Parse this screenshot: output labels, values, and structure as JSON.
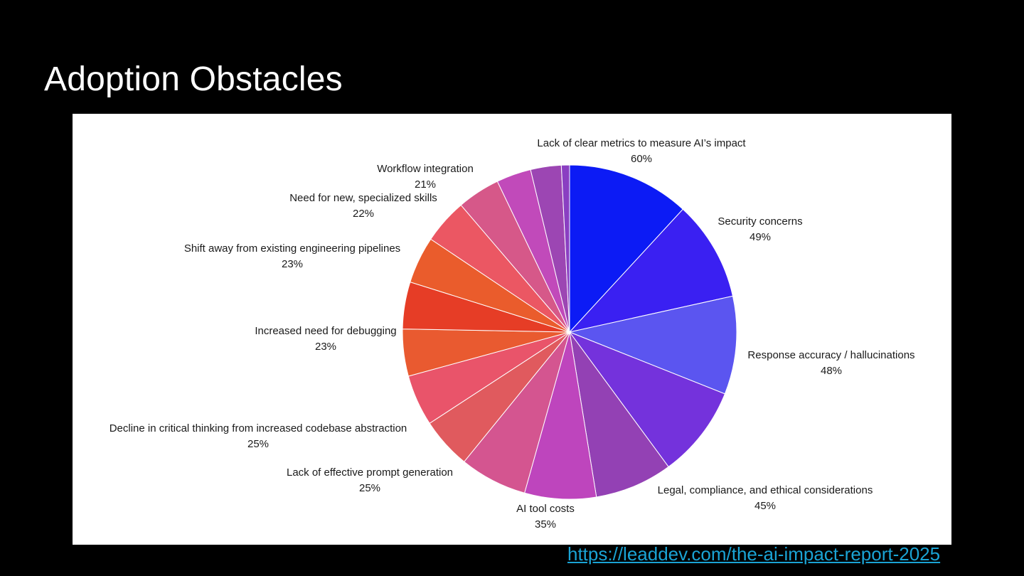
{
  "slide": {
    "title": "Adoption Obstacles",
    "source_link": "https://leaddev.com/the-ai-impact-report-2025"
  },
  "chart_data": {
    "type": "pie",
    "title": "",
    "slices": [
      {
        "label": "Lack of clear metrics to measure AI’s impact",
        "value": 60,
        "value_label": "60%",
        "color": "#0c1bf5"
      },
      {
        "label": "Security concerns",
        "value": 49,
        "value_label": "49%",
        "color": "#3a20f2"
      },
      {
        "label": "Response accuracy / hallucinations",
        "value": 48,
        "value_label": "48%",
        "color": "#5b55f0"
      },
      {
        "label": "Legal, compliance, and ethical considerations",
        "value": 45,
        "value_label": "45%",
        "color": "#7432dc"
      },
      {
        "label": "",
        "value": 38,
        "value_label": "",
        "color": "#9341b4"
      },
      {
        "label": "AI tool costs",
        "value": 35,
        "value_label": "35%",
        "color": "#be45bd"
      },
      {
        "label": "",
        "value": 33,
        "value_label": "",
        "color": "#d45590"
      },
      {
        "label": "Lack of effective prompt generation",
        "value": 25,
        "value_label": "25%",
        "color": "#e05a5e"
      },
      {
        "label": "Decline in critical thinking from increased codebase abstraction",
        "value": 25,
        "value_label": "25%",
        "color": "#e9546a"
      },
      {
        "label": "Increased need for debugging",
        "value": 23,
        "value_label": "23%",
        "color": "#e95a30"
      },
      {
        "label": "",
        "value": 23,
        "value_label": "",
        "color": "#e63d26"
      },
      {
        "label": "Shift away from existing engineering pipelines",
        "value": 23,
        "value_label": "23%",
        "color": "#ea5c2c"
      },
      {
        "label": "Need for new, specialized skills",
        "value": 22,
        "value_label": "22%",
        "color": "#eb5763"
      },
      {
        "label": "Workflow integration",
        "value": 21,
        "value_label": "21%",
        "color": "#d65889"
      },
      {
        "label": "",
        "value": 17,
        "value_label": "",
        "color": "#c14aba"
      },
      {
        "label": "",
        "value": 15,
        "value_label": "",
        "color": "#9c46b3"
      },
      {
        "label": "",
        "value": 4,
        "value_label": "",
        "color": "#8a3fc2"
      }
    ]
  }
}
